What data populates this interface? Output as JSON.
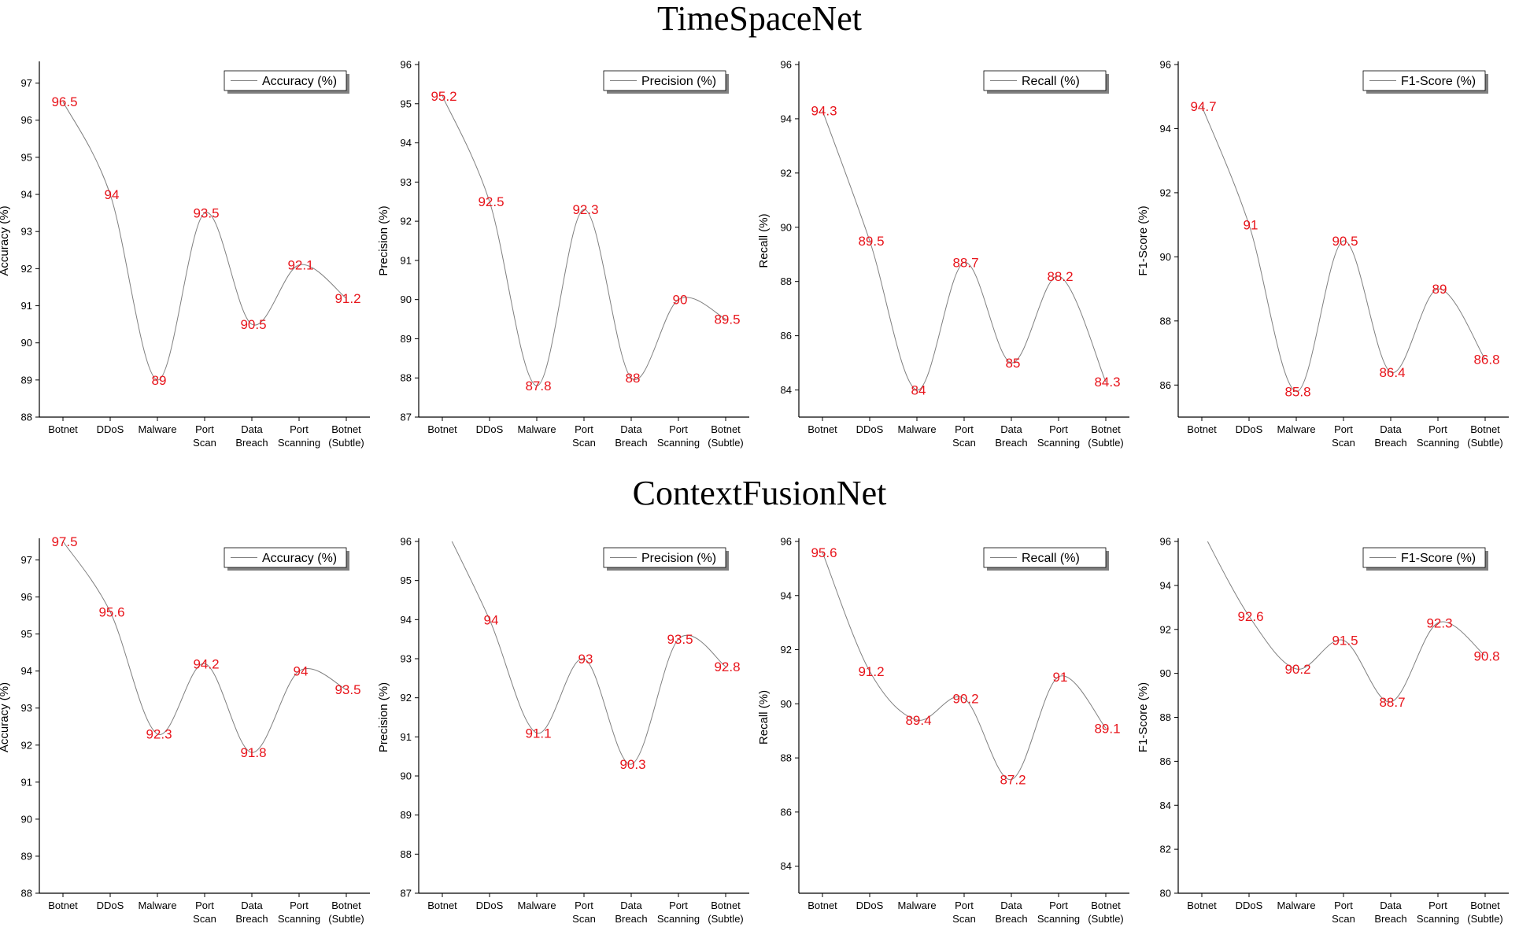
{
  "titles": {
    "top": "TimeSpaceNet",
    "bottom": "ContextFusionNet"
  },
  "colors": {
    "line": "#808080",
    "label": "#e8141b",
    "axis": "#000000",
    "shadow": "#808080"
  },
  "chart_data": [
    {
      "type": "line",
      "group": "TimeSpaceNet",
      "ylabel": "Accuracy (%)",
      "legend": "Accuracy (%)",
      "legend_position": "top-right",
      "grid": false,
      "categories": [
        [
          "Botnet"
        ],
        [
          "DDoS"
        ],
        [
          "Malware"
        ],
        [
          "Port",
          "Scan"
        ],
        [
          "Data",
          "Breach"
        ],
        [
          "Port",
          "Scanning"
        ],
        [
          "Botnet",
          "(Subtle)"
        ]
      ],
      "values": [
        96.5,
        94,
        89,
        93.5,
        90.5,
        92.1,
        91.2
      ],
      "ylim": [
        88,
        97.5
      ],
      "yticks": [
        88,
        89,
        90,
        91,
        92,
        93,
        94,
        95,
        96,
        97
      ]
    },
    {
      "type": "line",
      "group": "TimeSpaceNet",
      "ylabel": "Precision (%)",
      "legend": "Precision (%)",
      "legend_position": "top-right",
      "grid": false,
      "categories": [
        [
          "Botnet"
        ],
        [
          "DDoS"
        ],
        [
          "Malware"
        ],
        [
          "Port",
          "Scan"
        ],
        [
          "Data",
          "Breach"
        ],
        [
          "Port",
          "Scanning"
        ],
        [
          "Botnet",
          "(Subtle)"
        ]
      ],
      "values": [
        95.2,
        92.5,
        87.8,
        92.3,
        88,
        90,
        89.5
      ],
      "ylim": [
        87,
        96
      ],
      "yticks": [
        87,
        88,
        89,
        90,
        91,
        92,
        93,
        94,
        95,
        96
      ]
    },
    {
      "type": "line",
      "group": "TimeSpaceNet",
      "ylabel": "Recall (%)",
      "legend": "Recall (%)",
      "legend_position": "top-right",
      "grid": false,
      "categories": [
        [
          "Botnet"
        ],
        [
          "DDoS"
        ],
        [
          "Malware"
        ],
        [
          "Port",
          "Scan"
        ],
        [
          "Data",
          "Breach"
        ],
        [
          "Port",
          "Scanning"
        ],
        [
          "Botnet",
          "(Subtle)"
        ]
      ],
      "values": [
        94.3,
        89.5,
        84,
        88.7,
        85,
        88.2,
        84.3
      ],
      "ylim": [
        83,
        96
      ],
      "yticks": [
        84,
        86,
        88,
        90,
        92,
        94,
        96
      ]
    },
    {
      "type": "line",
      "group": "TimeSpaceNet",
      "ylabel": "F1-Score (%)",
      "legend": "F1-Score (%)",
      "legend_position": "top-right",
      "grid": false,
      "categories": [
        [
          "Botnet"
        ],
        [
          "DDoS"
        ],
        [
          "Malware"
        ],
        [
          "Port",
          "Scan"
        ],
        [
          "Data",
          "Breach"
        ],
        [
          "Port",
          "Scanning"
        ],
        [
          "Botnet",
          "(Subtle)"
        ]
      ],
      "values": [
        94.7,
        91,
        85.8,
        90.5,
        86.4,
        89,
        86.8
      ],
      "ylim": [
        85,
        96
      ],
      "yticks": [
        86,
        88,
        90,
        92,
        94,
        96
      ]
    },
    {
      "type": "line",
      "group": "ContextFusionNet",
      "ylabel": "Accuracy (%)",
      "legend": "Accuracy (%)",
      "legend_position": "top-right",
      "grid": false,
      "categories": [
        [
          "Botnet"
        ],
        [
          "DDoS"
        ],
        [
          "Malware"
        ],
        [
          "Port",
          "Scan"
        ],
        [
          "Data",
          "Breach"
        ],
        [
          "Port",
          "Scanning"
        ],
        [
          "Botnet",
          "(Subtle)"
        ]
      ],
      "values": [
        97.5,
        95.6,
        92.3,
        94.2,
        91.8,
        94,
        93.5
      ],
      "ylim": [
        88,
        97.5
      ],
      "yticks": [
        88,
        89,
        90,
        91,
        92,
        93,
        94,
        95,
        96,
        97
      ]
    },
    {
      "type": "line",
      "group": "ContextFusionNet",
      "ylabel": "Precision (%)",
      "legend": "Precision (%)",
      "legend_position": "top-right",
      "grid": false,
      "categories": [
        [
          "Botnet"
        ],
        [
          "DDoS"
        ],
        [
          "Malware"
        ],
        [
          "Port",
          "Scan"
        ],
        [
          "Data",
          "Breach"
        ],
        [
          "Port",
          "Scanning"
        ],
        [
          "Botnet",
          "(Subtle)"
        ]
      ],
      "values": [
        96.5,
        94,
        91.1,
        93,
        90.3,
        93.5,
        92.8
      ],
      "label_from_index": 1,
      "ylim": [
        87,
        96
      ],
      "yticks": [
        87,
        88,
        89,
        90,
        91,
        92,
        93,
        94,
        95,
        96
      ]
    },
    {
      "type": "line",
      "group": "ContextFusionNet",
      "ylabel": "Recall (%)",
      "legend": "Recall (%)",
      "legend_position": "top-right",
      "grid": false,
      "categories": [
        [
          "Botnet"
        ],
        [
          "DDoS"
        ],
        [
          "Malware"
        ],
        [
          "Port",
          "Scan"
        ],
        [
          "Data",
          "Breach"
        ],
        [
          "Port",
          "Scanning"
        ],
        [
          "Botnet",
          "(Subtle)"
        ]
      ],
      "values": [
        95.6,
        91.2,
        89.4,
        90.2,
        87.2,
        91,
        89.1
      ],
      "ylim": [
        83,
        96
      ],
      "yticks": [
        84,
        86,
        88,
        90,
        92,
        94,
        96
      ]
    },
    {
      "type": "line",
      "group": "ContextFusionNet",
      "ylabel": "F1-Score (%)",
      "legend": "F1-Score (%)",
      "legend_position": "top-right",
      "grid": false,
      "categories": [
        [
          "Botnet"
        ],
        [
          "DDoS"
        ],
        [
          "Malware"
        ],
        [
          "Port",
          "Scan"
        ],
        [
          "Data",
          "Breach"
        ],
        [
          "Port",
          "Scanning"
        ],
        [
          "Botnet",
          "(Subtle)"
        ]
      ],
      "values": [
        96.5,
        92.6,
        90.2,
        91.5,
        88.7,
        92.3,
        90.8
      ],
      "label_from_index": 1,
      "ylim": [
        80,
        96
      ],
      "yticks": [
        80,
        82,
        84,
        86,
        88,
        90,
        92,
        94,
        96
      ]
    }
  ]
}
